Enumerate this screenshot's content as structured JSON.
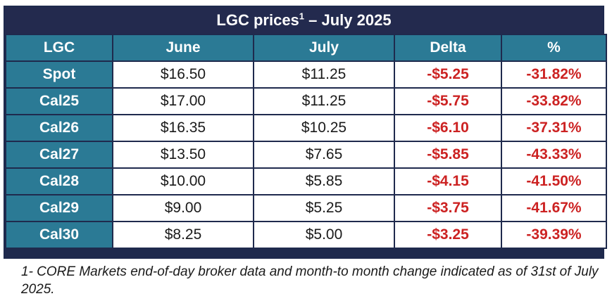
{
  "title": {
    "text": "LGC prices",
    "superscript": "1",
    "suffix": " – July 2025"
  },
  "columns": [
    "LGC",
    "June",
    "July",
    "Delta",
    "%"
  ],
  "rows": [
    {
      "label": "Spot",
      "june": "$16.50",
      "july": "$11.25",
      "delta": "-$5.25",
      "pct": "-31.82%"
    },
    {
      "label": "Cal25",
      "june": "$17.00",
      "july": "$11.25",
      "delta": "-$5.75",
      "pct": "-33.82%"
    },
    {
      "label": "Cal26",
      "june": "$16.35",
      "july": "$10.25",
      "delta": "-$6.10",
      "pct": "-37.31%"
    },
    {
      "label": "Cal27",
      "june": "$13.50",
      "july": "$7.65",
      "delta": "-$5.85",
      "pct": "-43.33%"
    },
    {
      "label": "Cal28",
      "june": "$10.00",
      "july": "$5.85",
      "delta": "-$4.15",
      "pct": "-41.50%"
    },
    {
      "label": "Cal29",
      "june": "$9.00",
      "july": "$5.25",
      "delta": "-$3.75",
      "pct": "-41.67%"
    },
    {
      "label": "Cal30",
      "june": "$8.25",
      "july": "$5.00",
      "delta": "-$3.25",
      "pct": "-39.39%"
    }
  ],
  "footnote": "1- CORE Markets end-of-day broker data and month-to month change indicated as of 31st of July 2025.",
  "colors": {
    "title_bg": "#232a4e",
    "header_bg": "#2b7a95",
    "negative": "#cc2222",
    "border": "#1f2a4d"
  }
}
